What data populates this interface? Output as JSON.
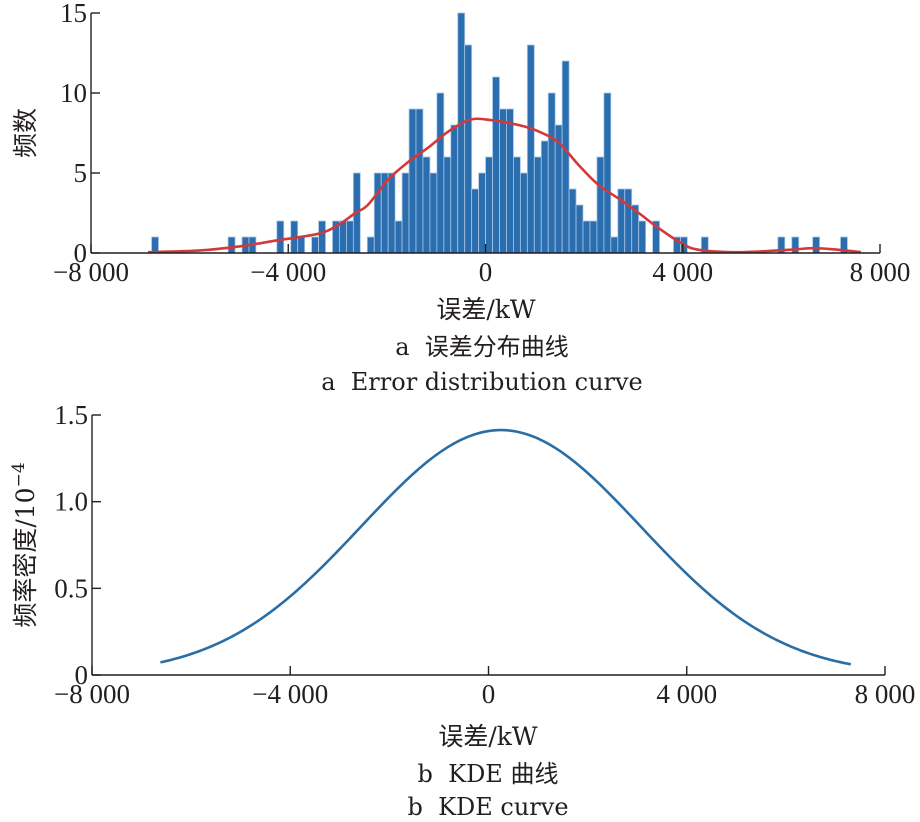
{
  "chart_data": [
    {
      "type": "bar",
      "subtype": "histogram",
      "title": "",
      "xlabel": "误差/kW",
      "ylabel": "频数",
      "xlim": [
        -8000,
        8000
      ],
      "ylim": [
        0,
        15
      ],
      "xticks": [
        -8000,
        -4000,
        0,
        4000,
        8000
      ],
      "xtick_labels": [
        "−8 000",
        "−4 000",
        "0",
        "4 000",
        "8 000"
      ],
      "yticks": [
        0,
        5,
        10,
        15
      ],
      "ytick_labels": [
        "0",
        "5",
        "10",
        "15"
      ],
      "grid": false,
      "legend": "none",
      "bins": {
        "start": -6772,
        "end": 7340,
        "count": 100,
        "counts": [
          1,
          0,
          0,
          0,
          0,
          0,
          0,
          0,
          0,
          0,
          0,
          1,
          0,
          1,
          1,
          0,
          0,
          0,
          2,
          0,
          2,
          1,
          0,
          1,
          2,
          0,
          2,
          2,
          2,
          5,
          0,
          1,
          5,
          5,
          5,
          2,
          5,
          9,
          9,
          6,
          5,
          10,
          6,
          8,
          15,
          13,
          4,
          5,
          6,
          11,
          9,
          9,
          6,
          5,
          13,
          6,
          7,
          10,
          8,
          12,
          4,
          3,
          2,
          2,
          6,
          10,
          1,
          4,
          4,
          3,
          2,
          0,
          2,
          0,
          0,
          1,
          1,
          0,
          0,
          1,
          0,
          0,
          0,
          0,
          0,
          0,
          0,
          0,
          0,
          0,
          1,
          0,
          1,
          0,
          0,
          1,
          0,
          0,
          0,
          1
        ]
      },
      "series": [
        {
          "name": "error-distribution-curve",
          "type": "line",
          "x": [
            -6843,
            -5827,
            -5015,
            -4203,
            -3391,
            -2985,
            -2640,
            -2387,
            -1970,
            -1563,
            -1157,
            -751,
            -345,
            0,
            670,
            1076,
            1482,
            1888,
            2294,
            2700,
            3107,
            3513,
            3980,
            4325,
            5137,
            6152,
            6660,
            7168,
            7614
          ],
          "y": [
            0.05,
            0.15,
            0.4,
            0.8,
            1.2,
            1.75,
            2.5,
            3.0,
            4.6,
            5.7,
            6.6,
            7.6,
            8.3,
            8.35,
            8.0,
            7.6,
            6.9,
            5.5,
            4.25,
            3.4,
            2.5,
            1.55,
            0.6,
            0.2,
            0.05,
            0.2,
            0.3,
            0.2,
            0.05
          ]
        }
      ],
      "colors": {
        "bars": "#2a6eaf",
        "curve": "#d2393a"
      },
      "caption_cn": "a  误差分布曲线",
      "caption_en": "a  Error distribution curve"
    },
    {
      "type": "line",
      "title": "",
      "xlabel": "误差/kW",
      "ylabel": "频率密度/10",
      "ylabel_superscript": "−4",
      "xlim": [
        -8000,
        8000
      ],
      "ylim": [
        0,
        1.5
      ],
      "xticks": [
        -8000,
        -4000,
        0,
        4000,
        8000
      ],
      "xtick_labels": [
        "−8 000",
        "−4 000",
        "0",
        "4 000",
        "8 000"
      ],
      "yticks": [
        0,
        0.5,
        1.0,
        1.5
      ],
      "ytick_labels": [
        "0",
        "0.5",
        "1.0",
        "1.5"
      ],
      "grid": false,
      "legend": "none",
      "series": [
        {
          "name": "KDE",
          "kde": {
            "mean": 250,
            "std": 2820,
            "peak": 1.413,
            "x_start": -6620,
            "x_end": 7310
          }
        }
      ],
      "colors": {
        "curve": "#2a6ea6"
      },
      "caption_cn": "b  KDE 曲线",
      "caption_en": "b  KDE curve"
    }
  ]
}
